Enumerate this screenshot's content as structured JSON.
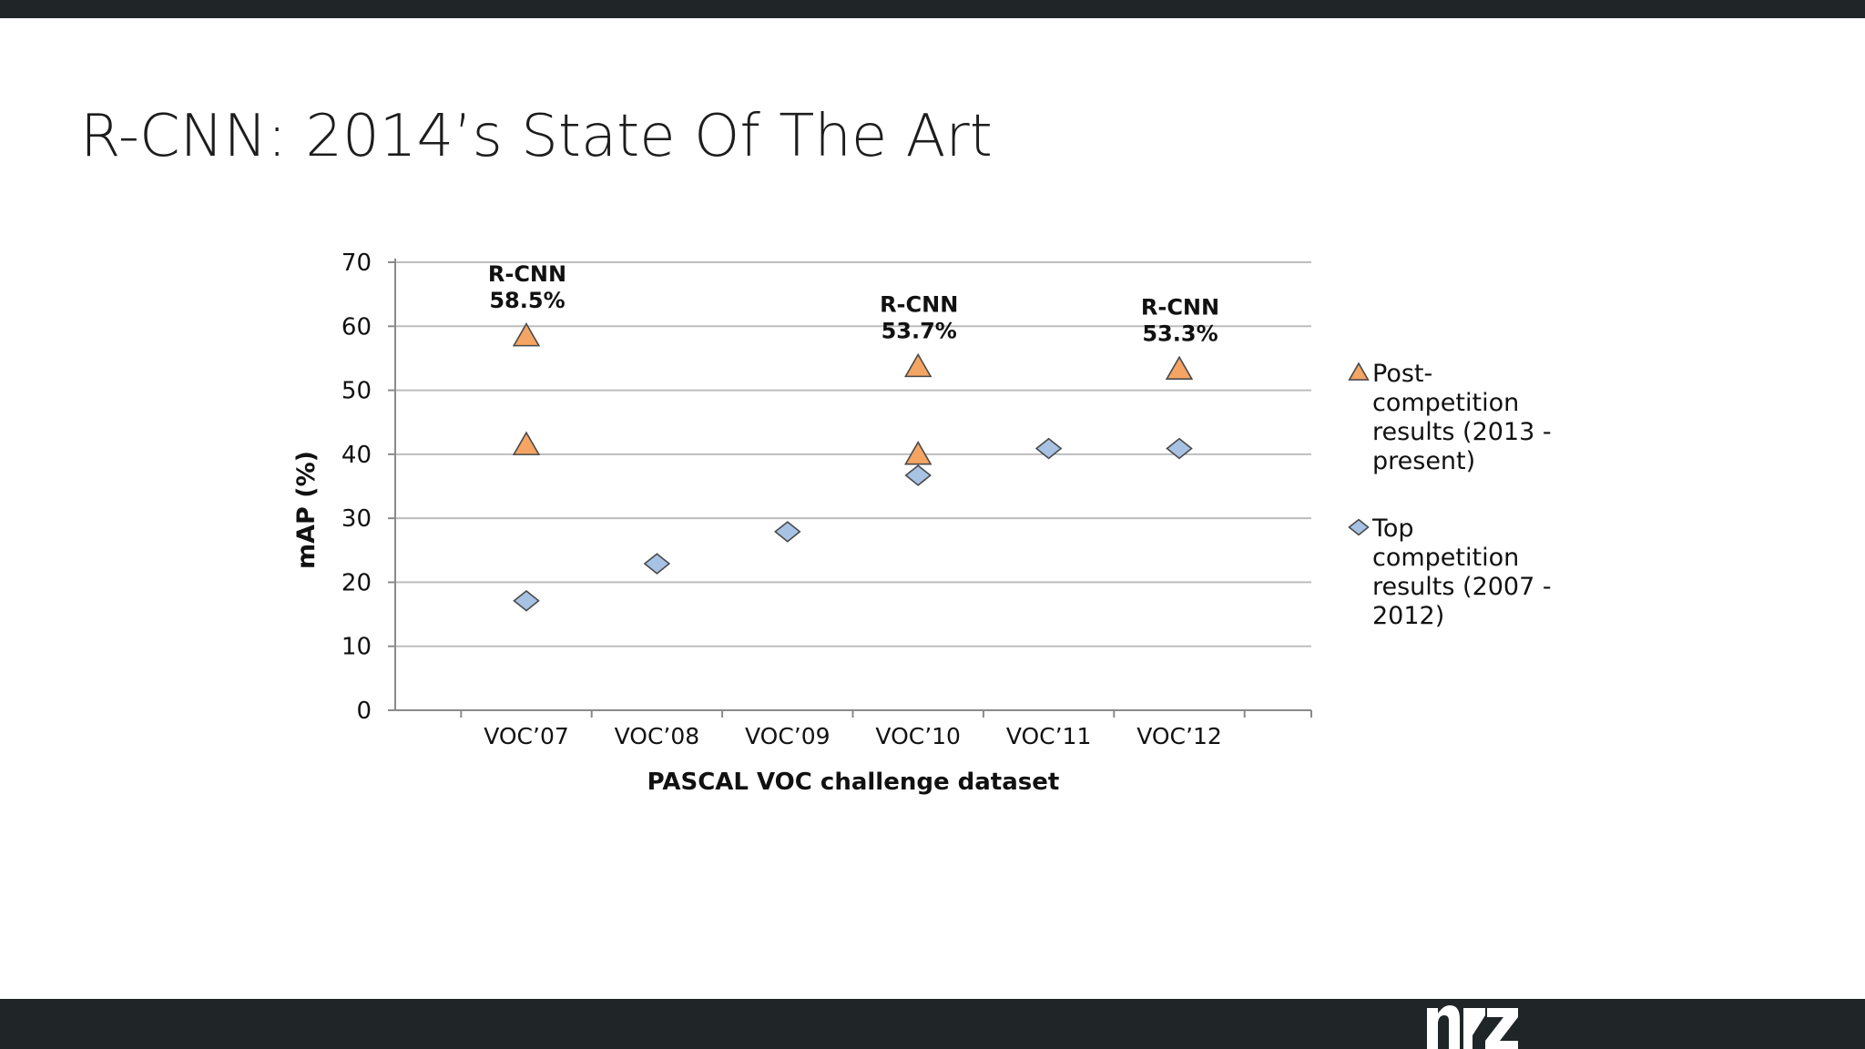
{
  "slide": {
    "title": "R-CNN: 2014’s State Of The Art"
  },
  "colors": {
    "bar": "#202628",
    "post_competition": "#f5a563",
    "top_competition": "#a7c2e3",
    "marker_stroke": "#4a4a4a",
    "gridline": "#bdbdbd"
  },
  "chart_data": {
    "type": "scatter",
    "categories": [
      "VOC’07",
      "VOC’08",
      "VOC’09",
      "VOC’10",
      "VOC’11",
      "VOC’12"
    ],
    "xlabel": "PASCAL VOC challenge dataset",
    "ylabel": "mAP (%)",
    "ylim": [
      0,
      70
    ],
    "yticks": [
      0,
      10,
      20,
      30,
      40,
      50,
      60,
      70
    ],
    "grid": true,
    "legend_position": "right",
    "series": [
      {
        "name": "Post-competition results (2013 - present)",
        "legend_lines": [
          "Post-",
          "competition",
          "results (2013 -",
          "present)"
        ],
        "marker": "triangle",
        "points": [
          {
            "x": "VOC’07",
            "y": 58.5
          },
          {
            "x": "VOC’07",
            "y": 41.5
          },
          {
            "x": "VOC’10",
            "y": 53.7
          },
          {
            "x": "VOC’10",
            "y": 40.0
          },
          {
            "x": "VOC’12",
            "y": 53.3
          }
        ]
      },
      {
        "name": "Top competition results (2007 - 2012)",
        "legend_lines": [
          "Top",
          "competition",
          "results (2007 -",
          "2012)"
        ],
        "marker": "diamond",
        "points": [
          {
            "x": "VOC’07",
            "y": 17.1
          },
          {
            "x": "VOC’08",
            "y": 22.9
          },
          {
            "x": "VOC’09",
            "y": 27.9
          },
          {
            "x": "VOC’10",
            "y": 36.7
          },
          {
            "x": "VOC’11",
            "y": 40.9
          },
          {
            "x": "VOC’12",
            "y": 40.9
          }
        ]
      }
    ],
    "annotations": [
      {
        "x": "VOC’07",
        "y": 58.5,
        "lines": [
          "R-CNN",
          "58.5%"
        ]
      },
      {
        "x": "VOC’10",
        "y": 53.7,
        "lines": [
          "R-CNN",
          "53.7%"
        ]
      },
      {
        "x": "VOC’12",
        "y": 53.3,
        "lines": [
          "R-CNN",
          "53.3%"
        ]
      }
    ]
  },
  "logo": {
    "name": "brand-logo-icon"
  }
}
